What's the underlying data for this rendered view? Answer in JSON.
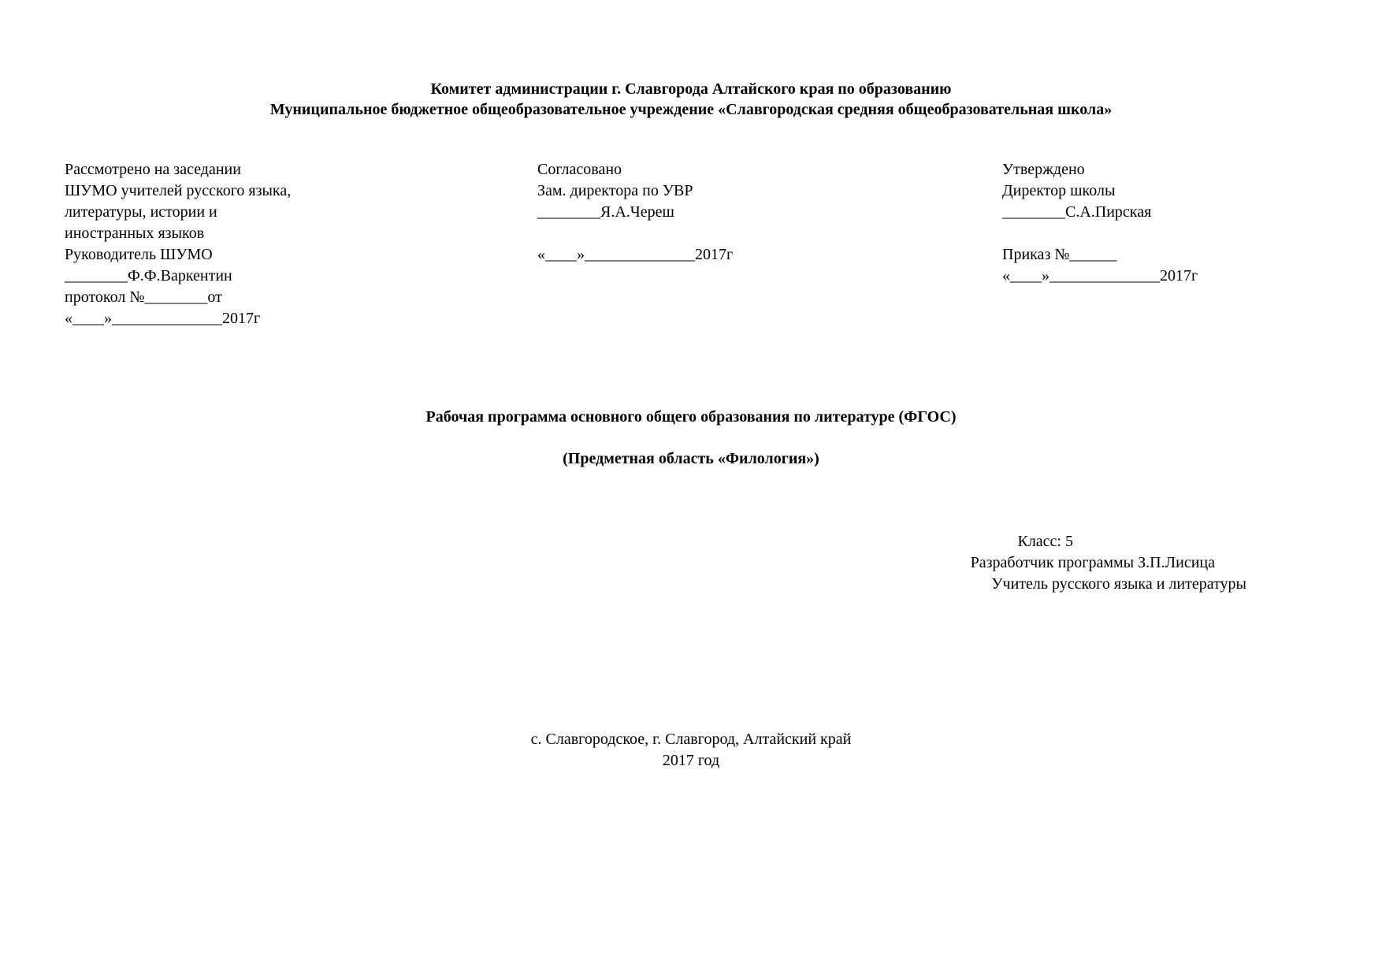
{
  "header": {
    "line1": "Комитет администрации г. Славгорода Алтайского края по образованию",
    "line2": "Муниципальное бюджетное общеобразовательное учреждение  «Славгородская средняя общеобразовательная школа»"
  },
  "approval": {
    "col1": {
      "line1": "Рассмотрено на заседании",
      "line2": "ШУМО учителей русского языка,",
      "line3": "литературы, истории и",
      "line4": "иностранных языков",
      "line5": "Руководитель ШУМО",
      "line6": "________Ф.Ф.Варкентин",
      "line7": "протокол №________от",
      "line8": "«____»______________2017г"
    },
    "col2": {
      "line1": "Согласовано",
      "line2": "Зам. директора по УВР",
      "line3": "________Я.А.Череш",
      "line4": "",
      "line5": "«____»______________2017г"
    },
    "col3": {
      "line1": "Утверждено",
      "line2": "Директор школы",
      "line3": "________С.А.Пирская",
      "line4": "",
      "line5": "Приказ №______",
      "line6": "«____»______________2017г"
    }
  },
  "title": {
    "line1": "Рабочая программа основного общего образования  по  литературе  (ФГОС)",
    "line2": "(Предметная область «Филология»)"
  },
  "info": {
    "class": "Класс: 5",
    "developer": "Разработчик программы З.П.Лисица",
    "position": "Учитель русского языка и литературы"
  },
  "footer": {
    "location": "с. Славгородское, г. Славгород, Алтайский край",
    "year": "2017 год"
  }
}
